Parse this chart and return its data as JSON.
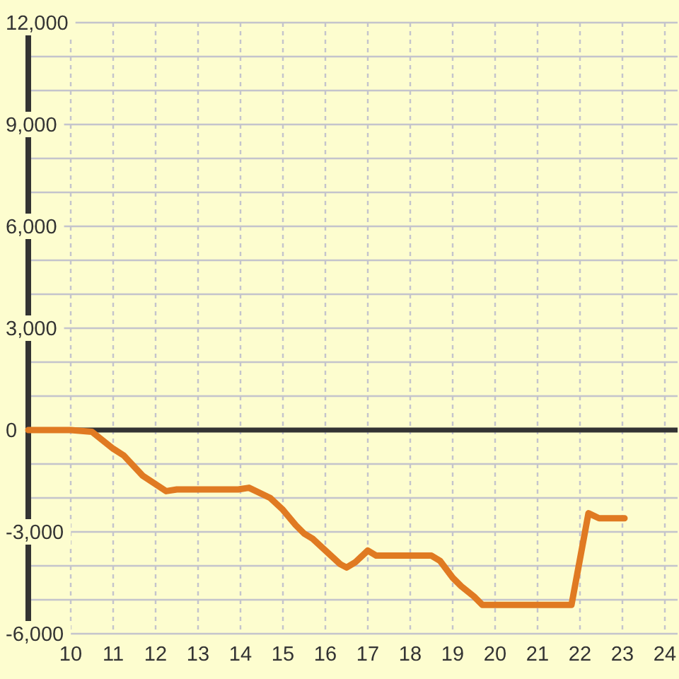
{
  "chart_data": {
    "type": "line",
    "x": [
      9,
      10,
      10.5,
      11,
      11.25,
      11.7,
      12.25,
      12.5,
      13.95,
      14.2,
      14.7,
      15,
      15.3,
      15.5,
      15.7,
      16.35,
      16.5,
      16.7,
      17,
      17.2,
      18.5,
      18.7,
      19,
      19.2,
      19.5,
      19.7,
      21.8,
      22.2,
      22.45,
      23.05
    ],
    "series": [
      {
        "color": "#e07a22",
        "values": [
          0,
          0,
          -50,
          -550,
          -750,
          -1350,
          -1800,
          -1750,
          -1750,
          -1700,
          -2000,
          -2350,
          -2800,
          -3050,
          -3200,
          -3950,
          -4050,
          -3900,
          -3550,
          -3700,
          -3700,
          -3850,
          -4350,
          -4600,
          -4900,
          -5150,
          -5150,
          -2450,
          -2600,
          -2600
        ]
      }
    ],
    "xlim": [
      9,
      24.3
    ],
    "xticks": [
      10,
      11,
      12,
      13,
      14,
      15,
      16,
      17,
      18,
      19,
      20,
      21,
      22,
      23,
      24
    ],
    "ylim": [
      -6000,
      12000
    ],
    "yticks": [
      {
        "value": -6000,
        "label": "-6,000"
      },
      {
        "value": -5000,
        "label": null
      },
      {
        "value": -4000,
        "label": null
      },
      {
        "value": -3000,
        "label": "-3,000"
      },
      {
        "value": -2000,
        "label": null
      },
      {
        "value": -1000,
        "label": null
      },
      {
        "value": 0,
        "label": "0"
      },
      {
        "value": 1000,
        "label": null
      },
      {
        "value": 2000,
        "label": null
      },
      {
        "value": 3000,
        "label": "3,000"
      },
      {
        "value": 4000,
        "label": null
      },
      {
        "value": 5000,
        "label": null
      },
      {
        "value": 6000,
        "label": "6,000"
      },
      {
        "value": 7000,
        "label": null
      },
      {
        "value": 8000,
        "label": null
      },
      {
        "value": 9000,
        "label": "9,000"
      },
      {
        "value": 10000,
        "label": null
      },
      {
        "value": 11000,
        "label": null
      },
      {
        "value": 12000,
        "label": "12,000"
      }
    ],
    "grid": true,
    "ref_lines": [
      {
        "axis": "y",
        "value": 0,
        "color": "#333333"
      }
    ]
  }
}
